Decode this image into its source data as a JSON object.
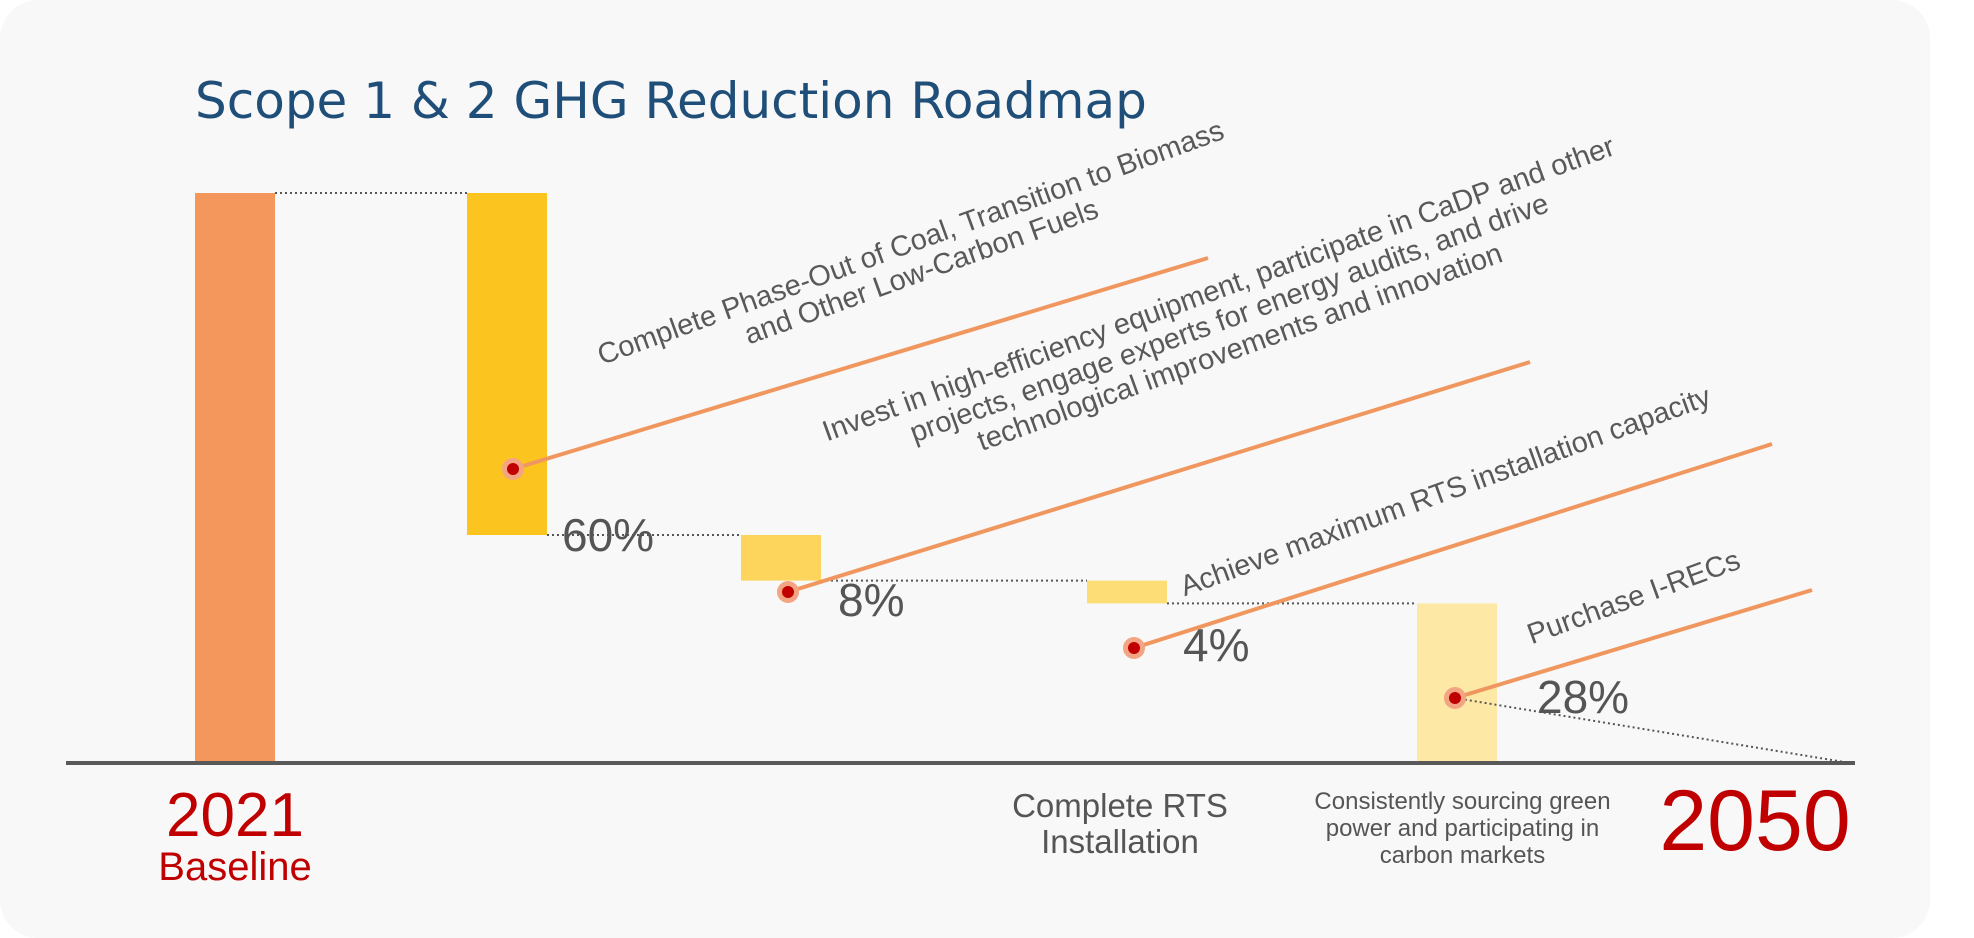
{
  "title": "Scope 1 & 2 GHG Reduction Roadmap",
  "chart_data": {
    "type": "bar",
    "subtype": "waterfall",
    "title": "Scope 1 & 2 GHG Reduction Roadmap",
    "baseline": {
      "year": "2021",
      "label": "Baseline",
      "value": 100
    },
    "target": {
      "year": "2050",
      "value": 0
    },
    "steps": [
      {
        "initiative": "Complete Phase-Out of Coal, Transition to Biomass and Other Low-Carbon Fuels",
        "value": 60,
        "value_label": "60%",
        "color": "#fcc41f"
      },
      {
        "initiative": "Invest in high-efficiency equipment, participate in CaDP and other projects, engage experts for energy audits, and drive technological improvements and innovation",
        "value": 8,
        "value_label": "8%",
        "color": "#fdd45c"
      },
      {
        "initiative": "Achieve maximum RTS installation capacity",
        "value": 4,
        "value_label": "4%",
        "color": "#fddd75"
      },
      {
        "initiative": "Purchase I-RECs",
        "value": 28,
        "value_label": "28%",
        "color": "#fde8a6"
      }
    ],
    "milestones": [
      {
        "label": "Complete RTS Installation"
      },
      {
        "label": "Consistently sourcing green power and participating in carbon markets"
      }
    ],
    "colors": {
      "baseline": "#f4975c",
      "leader": "#f0975f",
      "marker": "#c00000",
      "year": "#c00000",
      "title": "#1f4e79"
    }
  }
}
